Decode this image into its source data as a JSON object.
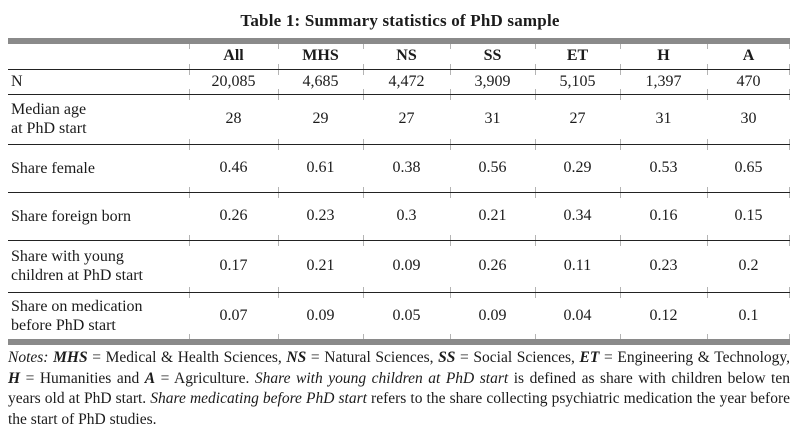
{
  "title": "Table 1: Summary statistics of PhD sample",
  "table": {
    "columns": [
      "",
      "All",
      "MHS",
      "NS",
      "SS",
      "ET",
      "H",
      "A"
    ],
    "rows": [
      {
        "label": [
          "N"
        ],
        "values": [
          "20,085",
          "4,685",
          "4,472",
          "3,909",
          "5,105",
          "1,397",
          "470"
        ]
      },
      {
        "label": [
          "Median age",
          "at PhD start"
        ],
        "values": [
          "28",
          "29",
          "27",
          "31",
          "27",
          "31",
          "30"
        ]
      },
      {
        "label": [
          "Share female"
        ],
        "values": [
          "0.46",
          "0.61",
          "0.38",
          "0.56",
          "0.29",
          "0.53",
          "0.65"
        ]
      },
      {
        "label": [
          "Share foreign born"
        ],
        "values": [
          "0.26",
          "0.23",
          "0.3",
          "0.21",
          "0.34",
          "0.16",
          "0.15"
        ]
      },
      {
        "label": [
          "Share with young",
          "children at PhD start"
        ],
        "values": [
          "0.17",
          "0.21",
          "0.09",
          "0.26",
          "0.11",
          "0.23",
          "0.2"
        ]
      },
      {
        "label": [
          "Share on medication",
          "before PhD start"
        ],
        "values": [
          "0.07",
          "0.09",
          "0.05",
          "0.09",
          "0.04",
          "0.12",
          "0.1"
        ]
      }
    ]
  },
  "notes": {
    "segments": [
      {
        "text": "Notes: ",
        "style": "i"
      },
      {
        "text": "MHS",
        "style": "bi"
      },
      {
        "text": " = Medical & Health Sciences, ",
        "style": ""
      },
      {
        "text": "NS",
        "style": "bi"
      },
      {
        "text": " = Natural Sciences, ",
        "style": ""
      },
      {
        "text": "SS",
        "style": "bi"
      },
      {
        "text": " = Social Sciences, ",
        "style": ""
      },
      {
        "text": "ET",
        "style": "bi"
      },
      {
        "text": " = Engineering & Technology, ",
        "style": ""
      },
      {
        "text": "H",
        "style": "bi"
      },
      {
        "text": " = Humanities and ",
        "style": ""
      },
      {
        "text": "A",
        "style": "bi"
      },
      {
        "text": " = Agriculture. ",
        "style": ""
      },
      {
        "text": "Share with young children at PhD start",
        "style": "i"
      },
      {
        "text": " is defined as share with children below ten years old at PhD start. ",
        "style": ""
      },
      {
        "text": "Share medicating before PhD start",
        "style": "i"
      },
      {
        "text": " refers to the share collecting psychiatric medication the year before the start of PhD studies.",
        "style": ""
      }
    ]
  },
  "colors": {
    "table_bar_gray": "#8a8a8a",
    "rule_black": "#222222",
    "column_tick_gray": "#b4b4b4",
    "text": "#1b1b1b",
    "background": "#ffffff"
  }
}
